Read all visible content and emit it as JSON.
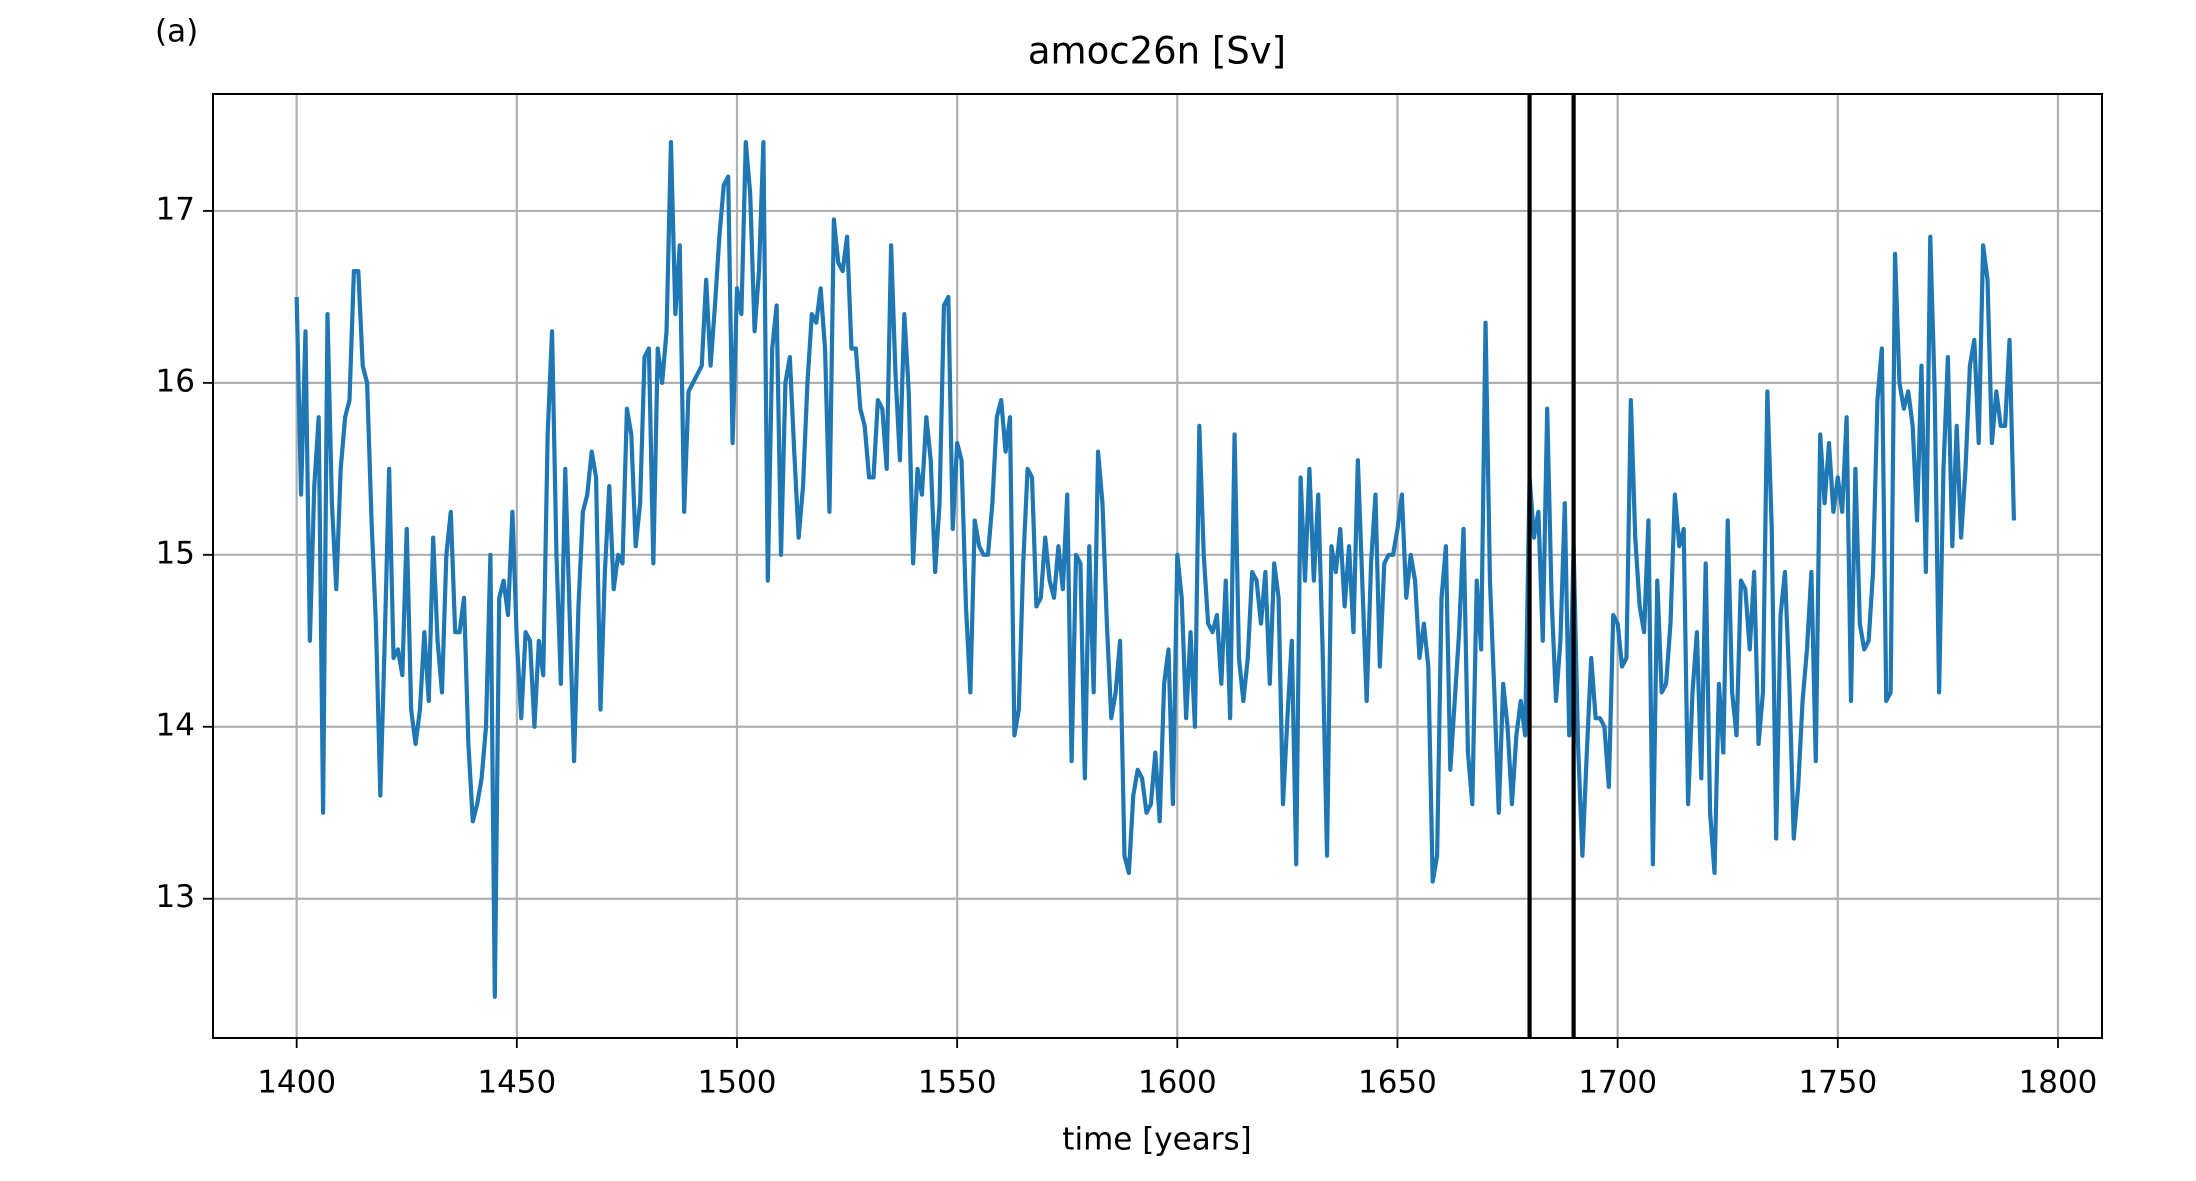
{
  "chart_data": {
    "type": "line",
    "panel_label": "(a)",
    "title": "amoc26n [Sv]",
    "x_label": "time [years]",
    "x": [
      1400,
      1401,
      1402,
      1403,
      1404,
      1405,
      1406,
      1407,
      1408,
      1409,
      1410,
      1411,
      1412,
      1413,
      1414,
      1415,
      1416,
      1417,
      1418,
      1419,
      1420,
      1421,
      1422,
      1423,
      1424,
      1425,
      1426,
      1427,
      1428,
      1429,
      1430,
      1431,
      1432,
      1433,
      1434,
      1435,
      1436,
      1437,
      1438,
      1439,
      1440,
      1441,
      1442,
      1443,
      1444,
      1445,
      1446,
      1447,
      1448,
      1449,
      1450,
      1451,
      1452,
      1453,
      1454,
      1455,
      1456,
      1457,
      1458,
      1459,
      1460,
      1461,
      1462,
      1463,
      1464,
      1465,
      1466,
      1467,
      1468,
      1469,
      1470,
      1471,
      1472,
      1473,
      1474,
      1475,
      1476,
      1477,
      1478,
      1479,
      1480,
      1481,
      1482,
      1483,
      1484,
      1485,
      1486,
      1487,
      1488,
      1489,
      1490,
      1491,
      1492,
      1493,
      1494,
      1495,
      1496,
      1497,
      1498,
      1499,
      1500,
      1501,
      1502,
      1503,
      1504,
      1505,
      1506,
      1507,
      1508,
      1509,
      1510,
      1511,
      1512,
      1513,
      1514,
      1515,
      1516,
      1517,
      1518,
      1519,
      1520,
      1521,
      1522,
      1523,
      1524,
      1525,
      1526,
      1527,
      1528,
      1529,
      1530,
      1531,
      1532,
      1533,
      1534,
      1535,
      1536,
      1537,
      1538,
      1539,
      1540,
      1541,
      1542,
      1543,
      1544,
      1545,
      1546,
      1547,
      1548,
      1549,
      1550,
      1551,
      1552,
      1553,
      1554,
      1555,
      1556,
      1557,
      1558,
      1559,
      1560,
      1561,
      1562,
      1563,
      1564,
      1565,
      1566,
      1567,
      1568,
      1569,
      1570,
      1571,
      1572,
      1573,
      1574,
      1575,
      1576,
      1577,
      1578,
      1579,
      1580,
      1581,
      1582,
      1583,
      1584,
      1585,
      1586,
      1587,
      1588,
      1589,
      1590,
      1591,
      1592,
      1593,
      1594,
      1595,
      1596,
      1597,
      1598,
      1599,
      1600,
      1601,
      1602,
      1603,
      1604,
      1605,
      1606,
      1607,
      1608,
      1609,
      1610,
      1611,
      1612,
      1613,
      1614,
      1615,
      1616,
      1617,
      1618,
      1619,
      1620,
      1621,
      1622,
      1623,
      1624,
      1625,
      1626,
      1627,
      1628,
      1629,
      1630,
      1631,
      1632,
      1633,
      1634,
      1635,
      1636,
      1637,
      1638,
      1639,
      1640,
      1641,
      1642,
      1643,
      1644,
      1645,
      1646,
      1647,
      1648,
      1649,
      1650,
      1651,
      1652,
      1653,
      1654,
      1655,
      1656,
      1657,
      1658,
      1659,
      1660,
      1661,
      1662,
      1663,
      1664,
      1665,
      1666,
      1667,
      1668,
      1669,
      1670,
      1671,
      1672,
      1673,
      1674,
      1675,
      1676,
      1677,
      1678,
      1679,
      1680,
      1681,
      1682,
      1683,
      1684,
      1685,
      1686,
      1687,
      1688,
      1689,
      1690,
      1691,
      1692,
      1693,
      1694,
      1695,
      1696,
      1697,
      1698,
      1699,
      1700,
      1701,
      1702,
      1703,
      1704,
      1705,
      1706,
      1707,
      1708,
      1709,
      1710,
      1711,
      1712,
      1713,
      1714,
      1715,
      1716,
      1717,
      1718,
      1719,
      1720,
      1721,
      1722,
      1723,
      1724,
      1725,
      1726,
      1727,
      1728,
      1729,
      1730,
      1731,
      1732,
      1733,
      1734,
      1735,
      1736,
      1737,
      1738,
      1739,
      1740,
      1741,
      1742,
      1743,
      1744,
      1745,
      1746,
      1747,
      1748,
      1749,
      1750,
      1751,
      1752,
      1753,
      1754,
      1755,
      1756,
      1757,
      1758,
      1759,
      1760,
      1761,
      1762,
      1763,
      1764,
      1765,
      1766,
      1767,
      1768,
      1769,
      1770,
      1771,
      1772,
      1773,
      1774,
      1775,
      1776,
      1777,
      1778,
      1779,
      1780,
      1781,
      1782,
      1783,
      1784,
      1785,
      1786,
      1787,
      1788,
      1789,
      1790
    ],
    "values": [
      16.5,
      15.35,
      16.3,
      14.5,
      15.4,
      15.8,
      13.5,
      16.4,
      15.3,
      14.8,
      15.5,
      15.8,
      15.9,
      16.65,
      16.65,
      16.1,
      16.0,
      15.2,
      14.6,
      13.6,
      14.5,
      15.5,
      14.4,
      14.45,
      14.3,
      15.15,
      14.1,
      13.9,
      14.1,
      14.55,
      14.15,
      15.1,
      14.5,
      14.2,
      15.0,
      15.25,
      14.55,
      14.55,
      14.75,
      13.9,
      13.45,
      13.55,
      13.7,
      14.0,
      15.0,
      12.43,
      14.75,
      14.85,
      14.65,
      15.25,
      14.5,
      14.05,
      14.55,
      14.5,
      14.0,
      14.5,
      14.3,
      15.7,
      16.3,
      15.0,
      14.25,
      15.5,
      14.65,
      13.8,
      14.7,
      15.25,
      15.35,
      15.6,
      15.45,
      14.1,
      14.9,
      15.4,
      14.8,
      15.0,
      14.95,
      15.85,
      15.7,
      15.05,
      15.3,
      16.15,
      16.2,
      14.95,
      16.2,
      16.0,
      16.3,
      17.4,
      16.4,
      16.8,
      15.25,
      15.95,
      16.0,
      16.05,
      16.1,
      16.6,
      16.1,
      16.45,
      16.85,
      17.15,
      17.2,
      15.65,
      16.55,
      16.4,
      17.4,
      17.1,
      16.3,
      16.65,
      17.4,
      14.85,
      16.2,
      16.45,
      15.0,
      16.0,
      16.15,
      15.6,
      15.1,
      15.4,
      16.0,
      16.4,
      16.35,
      16.55,
      16.2,
      15.25,
      16.95,
      16.7,
      16.65,
      16.85,
      16.2,
      16.2,
      15.85,
      15.75,
      15.45,
      15.45,
      15.9,
      15.85,
      15.5,
      16.8,
      16.05,
      15.55,
      16.4,
      15.95,
      14.95,
      15.5,
      15.35,
      15.8,
      15.55,
      14.9,
      15.3,
      16.45,
      16.5,
      15.15,
      15.65,
      15.55,
      14.7,
      14.2,
      15.2,
      15.05,
      15.0,
      15.0,
      15.3,
      15.8,
      15.9,
      15.6,
      15.8,
      13.95,
      14.1,
      14.95,
      15.5,
      15.45,
      14.7,
      14.75,
      15.1,
      14.85,
      14.75,
      15.05,
      14.8,
      15.35,
      13.8,
      15.0,
      14.95,
      13.7,
      15.05,
      14.2,
      15.6,
      15.3,
      14.6,
      14.05,
      14.2,
      14.5,
      13.25,
      13.15,
      13.6,
      13.75,
      13.7,
      13.5,
      13.55,
      13.85,
      13.45,
      14.25,
      14.45,
      13.55,
      15.0,
      14.75,
      14.05,
      14.55,
      14.0,
      15.75,
      15.0,
      14.6,
      14.55,
      14.65,
      14.25,
      14.85,
      14.05,
      15.7,
      14.4,
      14.15,
      14.4,
      14.9,
      14.85,
      14.6,
      14.9,
      14.25,
      14.95,
      14.75,
      13.55,
      14.05,
      14.5,
      13.2,
      15.45,
      14.85,
      15.5,
      14.85,
      15.35,
      14.45,
      13.25,
      15.05,
      14.9,
      15.15,
      14.7,
      15.05,
      14.55,
      15.55,
      14.85,
      14.15,
      14.95,
      15.35,
      14.35,
      14.95,
      15.0,
      15.0,
      15.15,
      15.35,
      14.75,
      15.0,
      14.85,
      14.4,
      14.6,
      14.35,
      13.1,
      13.25,
      14.75,
      15.05,
      13.75,
      14.15,
      14.55,
      15.15,
      13.85,
      13.55,
      14.85,
      14.45,
      16.35,
      14.85,
      14.2,
      13.5,
      14.25,
      14.0,
      13.55,
      13.95,
      14.15,
      13.95,
      15.45,
      15.1,
      15.25,
      14.5,
      15.85,
      14.75,
      14.15,
      14.5,
      15.3,
      13.95,
      15.05,
      13.9,
      13.25,
      13.85,
      14.4,
      14.05,
      14.05,
      14.0,
      13.65,
      14.65,
      14.6,
      14.35,
      14.4,
      15.9,
      15.1,
      14.7,
      14.55,
      15.2,
      13.2,
      14.85,
      14.2,
      14.25,
      14.6,
      15.35,
      15.05,
      15.15,
      13.55,
      14.2,
      14.55,
      13.7,
      14.95,
      13.5,
      13.15,
      14.25,
      13.85,
      15.2,
      14.2,
      13.95,
      14.85,
      14.8,
      14.45,
      14.9,
      13.9,
      14.2,
      15.95,
      15.15,
      13.35,
      14.65,
      14.9,
      14.25,
      13.35,
      13.65,
      14.15,
      14.45,
      14.9,
      13.8,
      15.7,
      15.3,
      15.65,
      15.25,
      15.45,
      15.25,
      15.8,
      14.15,
      15.5,
      14.6,
      14.45,
      14.5,
      14.9,
      15.9,
      16.2,
      14.15,
      14.2,
      16.75,
      16.0,
      15.85,
      15.95,
      15.75,
      15.2,
      16.1,
      14.9,
      16.85,
      15.95,
      14.2,
      15.5,
      16.15,
      15.05,
      15.75,
      15.1,
      15.5,
      16.1,
      16.25,
      15.65,
      16.8,
      16.6,
      15.65,
      15.95,
      15.75,
      15.75,
      16.25,
      15.2
    ],
    "color": "#1f77b4",
    "vlines": [
      1680,
      1690
    ],
    "vline_color": "#000000",
    "xlim": [
      1381,
      1810
    ],
    "ylim": [
      12.19,
      17.68
    ],
    "xticks": [
      1400,
      1450,
      1500,
      1550,
      1600,
      1650,
      1700,
      1750,
      1800
    ],
    "yticks": [
      13,
      14,
      15,
      16,
      17
    ],
    "grid": true
  }
}
